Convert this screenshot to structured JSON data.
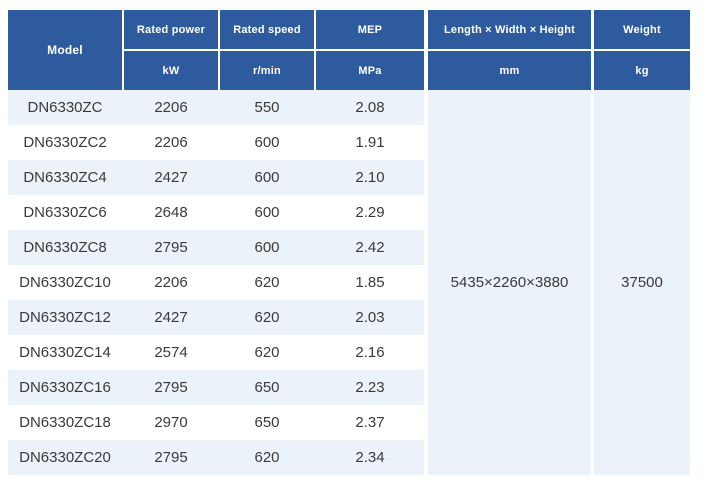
{
  "colors": {
    "header_bg": "#2e5b9e",
    "header_text": "#ffffff",
    "row_alt_bg": "#ebf2fa",
    "row_bg": "#ffffff",
    "body_text": "#3a3a3a"
  },
  "header": {
    "model_label": "Model",
    "columns": [
      {
        "label": "Rated power",
        "unit": "kW"
      },
      {
        "label": "Rated speed",
        "unit": "r/min"
      },
      {
        "label": "MEP",
        "unit": "MPa"
      },
      {
        "label": "Length × Width × Height",
        "unit": "mm"
      },
      {
        "label": "Weight",
        "unit": "kg"
      }
    ]
  },
  "rows": [
    {
      "model": "DN6330ZC",
      "power": "2206",
      "speed": "550",
      "mep": "2.08"
    },
    {
      "model": "DN6330ZC2",
      "power": "2206",
      "speed": "600",
      "mep": "1.91"
    },
    {
      "model": "DN6330ZC4",
      "power": "2427",
      "speed": "600",
      "mep": "2.10"
    },
    {
      "model": "DN6330ZC6",
      "power": "2648",
      "speed": "600",
      "mep": "2.29"
    },
    {
      "model": "DN6330ZC8",
      "power": "2795",
      "speed": "600",
      "mep": "2.42"
    },
    {
      "model": "DN6330ZC10",
      "power": "2206",
      "speed": "620",
      "mep": "1.85"
    },
    {
      "model": "DN6330ZC12",
      "power": "2427",
      "speed": "620",
      "mep": "2.03"
    },
    {
      "model": "DN6330ZC14",
      "power": "2574",
      "speed": "620",
      "mep": "2.16"
    },
    {
      "model": "DN6330ZC16",
      "power": "2795",
      "speed": "650",
      "mep": "2.23"
    },
    {
      "model": "DN6330ZC18",
      "power": "2970",
      "speed": "650",
      "mep": "2.37"
    },
    {
      "model": "DN6330ZC20",
      "power": "2795",
      "speed": "620",
      "mep": "2.34"
    }
  ],
  "merged": {
    "dimensions": "5435×2260×3880",
    "weight": "37500"
  }
}
